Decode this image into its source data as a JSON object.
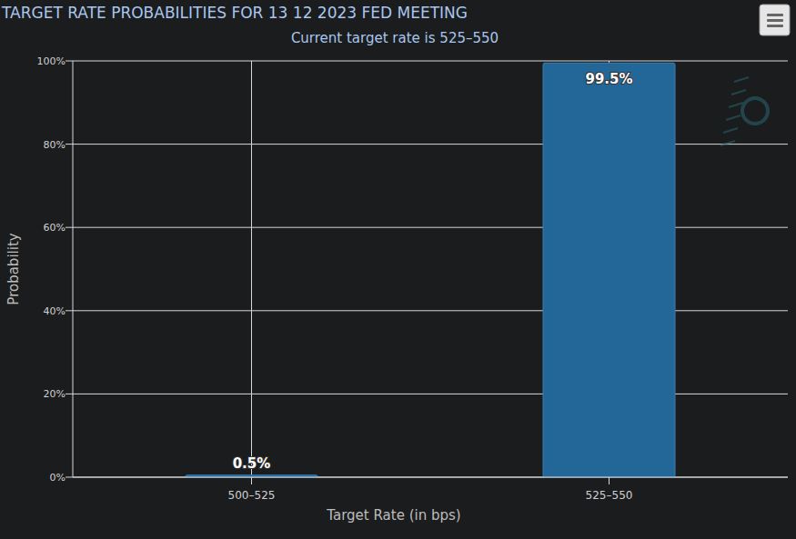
{
  "chart_data": {
    "type": "bar",
    "title": "TARGET RATE PROBABILITIES FOR 13 12 2023 FED MEETING",
    "subtitle": "Current target rate is 525–550",
    "x_label": "Target Rate (in bps)",
    "y_label": "Probability",
    "categories": [
      "500–525",
      "525–550"
    ],
    "values": [
      0.5,
      99.5
    ],
    "value_labels": [
      "0.5%",
      "99.5%"
    ],
    "color": "#236698",
    "ylim": [
      0,
      100
    ],
    "yticks": [
      {
        "value": 0,
        "label": "0%"
      },
      {
        "value": 20,
        "label": "20%"
      },
      {
        "value": 40,
        "label": "40%"
      },
      {
        "value": 60,
        "label": "60%"
      },
      {
        "value": 80,
        "label": "80%"
      },
      {
        "value": 100,
        "label": "100%"
      }
    ],
    "grid": true,
    "data_labels": true
  }
}
